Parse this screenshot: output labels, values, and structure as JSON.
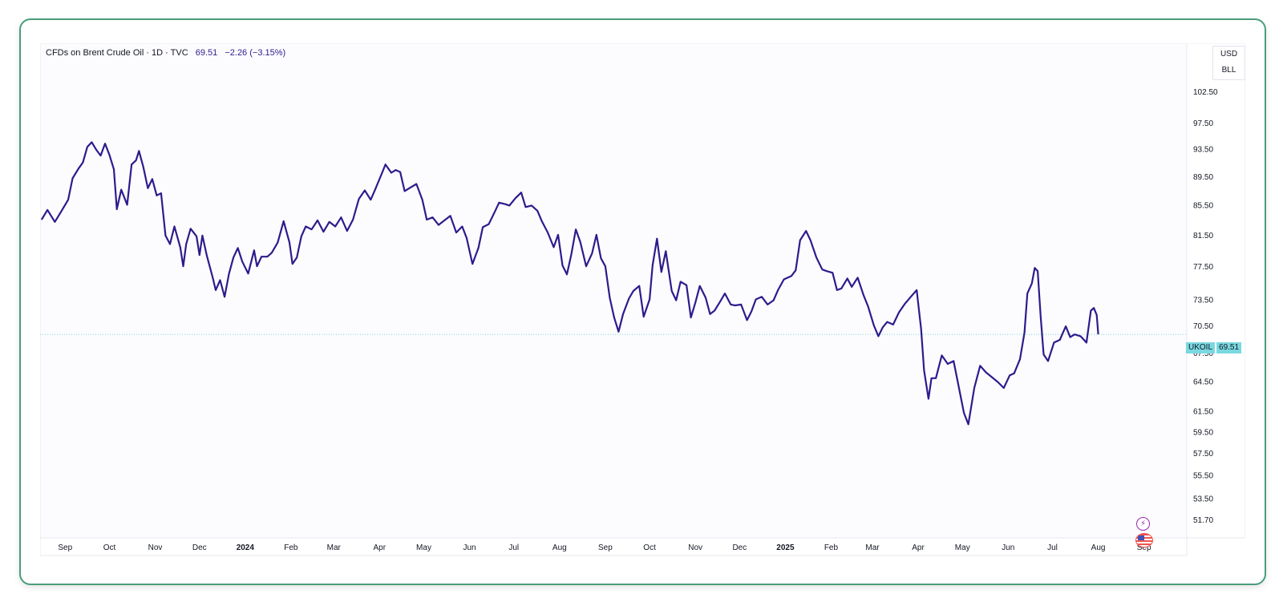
{
  "legend": {
    "symbol": "CFDs on Brent Crude Oil · 1D · TVC",
    "last_value": "69.51",
    "change": "−2.26 (−3.15%)"
  },
  "unit_box": {
    "currency": "USD",
    "unit": "BLL"
  },
  "price_tag": {
    "symbol": "UKOIL",
    "value": "69.51"
  },
  "colors": {
    "line": "#2e1b8c",
    "accent_tag": "#79d8e0",
    "frame": "#4a9d7a"
  },
  "icons": {
    "event_1": "lightning-bolt-icon",
    "event_2": "us-flag-icon"
  },
  "chart_data": {
    "type": "line",
    "title": "",
    "xlabel": "",
    "ylabel": "",
    "scale": "log",
    "ylim": [
      50.2,
      110.7
    ],
    "x_range": [
      "2023-08-15",
      "2025-09-30"
    ],
    "x_ticks": [
      {
        "date": "2023-09-01",
        "label": "Sep"
      },
      {
        "date": "2023-10-01",
        "label": "Oct"
      },
      {
        "date": "2023-11-01",
        "label": "Nov"
      },
      {
        "date": "2023-12-01",
        "label": "Dec"
      },
      {
        "date": "2024-01-01",
        "label": "2024"
      },
      {
        "date": "2024-02-01",
        "label": "Feb"
      },
      {
        "date": "2024-03-01",
        "label": "Mar"
      },
      {
        "date": "2024-04-01",
        "label": "Apr"
      },
      {
        "date": "2024-05-01",
        "label": "May"
      },
      {
        "date": "2024-06-01",
        "label": "Jun"
      },
      {
        "date": "2024-07-01",
        "label": "Jul"
      },
      {
        "date": "2024-08-01",
        "label": "Aug"
      },
      {
        "date": "2024-09-01",
        "label": "Sep"
      },
      {
        "date": "2024-10-01",
        "label": "Oct"
      },
      {
        "date": "2024-11-01",
        "label": "Nov"
      },
      {
        "date": "2024-12-01",
        "label": "Dec"
      },
      {
        "date": "2025-01-01",
        "label": "2025"
      },
      {
        "date": "2025-02-01",
        "label": "Feb"
      },
      {
        "date": "2025-03-01",
        "label": "Mar"
      },
      {
        "date": "2025-04-01",
        "label": "Apr"
      },
      {
        "date": "2025-05-01",
        "label": "May"
      },
      {
        "date": "2025-06-01",
        "label": "Jun"
      },
      {
        "date": "2025-07-01",
        "label": "Jul"
      },
      {
        "date": "2025-08-01",
        "label": "Aug"
      },
      {
        "date": "2025-09-01",
        "label": "Sep"
      }
    ],
    "y_ticks": [
      "102.50",
      "97.50",
      "93.50",
      "89.50",
      "85.50",
      "81.50",
      "77.50",
      "73.50",
      "70.50",
      "67.50",
      "64.50",
      "61.50",
      "59.50",
      "57.50",
      "55.50",
      "53.50",
      "51.70"
    ],
    "last_price": 69.51,
    "series": [
      {
        "values": [
          [
            "2023-08-16",
            83.5
          ],
          [
            "2023-08-20",
            84.8
          ],
          [
            "2023-08-25",
            83.2
          ],
          [
            "2023-08-29",
            84.5
          ],
          [
            "2023-09-03",
            86.2
          ],
          [
            "2023-09-06",
            89.2
          ],
          [
            "2023-09-10",
            90.6
          ],
          [
            "2023-09-13",
            91.5
          ],
          [
            "2023-09-16",
            93.8
          ],
          [
            "2023-09-19",
            94.5
          ],
          [
            "2023-09-22",
            93.4
          ],
          [
            "2023-09-25",
            92.5
          ],
          [
            "2023-09-28",
            94.3
          ],
          [
            "2023-10-01",
            92.6
          ],
          [
            "2023-10-04",
            90.5
          ],
          [
            "2023-10-06",
            84.9
          ],
          [
            "2023-10-09",
            87.6
          ],
          [
            "2023-10-13",
            85.5
          ],
          [
            "2023-10-16",
            91.2
          ],
          [
            "2023-10-19",
            91.8
          ],
          [
            "2023-10-21",
            93.2
          ],
          [
            "2023-10-24",
            90.8
          ],
          [
            "2023-10-27",
            87.8
          ],
          [
            "2023-10-30",
            89.1
          ],
          [
            "2023-11-02",
            86.8
          ],
          [
            "2023-11-05",
            87.1
          ],
          [
            "2023-11-08",
            81.4
          ],
          [
            "2023-11-11",
            80.3
          ],
          [
            "2023-11-14",
            82.6
          ],
          [
            "2023-11-18",
            79.9
          ],
          [
            "2023-11-20",
            77.5
          ],
          [
            "2023-11-22",
            80.3
          ],
          [
            "2023-11-25",
            82.3
          ],
          [
            "2023-11-29",
            81.3
          ],
          [
            "2023-12-01",
            78.9
          ],
          [
            "2023-12-03",
            81.4
          ],
          [
            "2023-12-06",
            78.8
          ],
          [
            "2023-12-10",
            76.1
          ],
          [
            "2023-12-12",
            74.6
          ],
          [
            "2023-12-15",
            75.8
          ],
          [
            "2023-12-18",
            73.8
          ],
          [
            "2023-12-21",
            76.6
          ],
          [
            "2023-12-24",
            78.6
          ],
          [
            "2023-12-27",
            79.8
          ],
          [
            "2023-12-30",
            78.1
          ],
          [
            "2024-01-03",
            76.6
          ],
          [
            "2024-01-07",
            79.5
          ],
          [
            "2024-01-09",
            77.5
          ],
          [
            "2024-01-12",
            78.7
          ],
          [
            "2024-01-16",
            78.7
          ],
          [
            "2024-01-19",
            79.2
          ],
          [
            "2024-01-23",
            80.5
          ],
          [
            "2024-01-27",
            83.3
          ],
          [
            "2024-01-31",
            80.5
          ],
          [
            "2024-02-02",
            77.8
          ],
          [
            "2024-02-05",
            78.6
          ],
          [
            "2024-02-08",
            81.3
          ],
          [
            "2024-02-11",
            82.6
          ],
          [
            "2024-02-15",
            82.2
          ],
          [
            "2024-02-19",
            83.4
          ],
          [
            "2024-02-23",
            81.9
          ],
          [
            "2024-02-27",
            83.2
          ],
          [
            "2024-03-02",
            82.6
          ],
          [
            "2024-03-06",
            83.8
          ],
          [
            "2024-03-10",
            82.0
          ],
          [
            "2024-03-14",
            83.5
          ],
          [
            "2024-03-18",
            86.3
          ],
          [
            "2024-03-22",
            87.5
          ],
          [
            "2024-03-26",
            86.2
          ],
          [
            "2024-03-29",
            87.6
          ],
          [
            "2024-04-02",
            89.6
          ],
          [
            "2024-04-05",
            91.2
          ],
          [
            "2024-04-09",
            90.0
          ],
          [
            "2024-04-12",
            90.4
          ],
          [
            "2024-04-15",
            90.1
          ],
          [
            "2024-04-18",
            87.4
          ],
          [
            "2024-04-22",
            87.9
          ],
          [
            "2024-04-26",
            88.4
          ],
          [
            "2024-04-30",
            86.2
          ],
          [
            "2024-05-03",
            83.5
          ],
          [
            "2024-05-07",
            83.8
          ],
          [
            "2024-05-11",
            82.8
          ],
          [
            "2024-05-15",
            83.4
          ],
          [
            "2024-05-19",
            84.0
          ],
          [
            "2024-05-23",
            81.8
          ],
          [
            "2024-05-27",
            82.6
          ],
          [
            "2024-05-30",
            81.1
          ],
          [
            "2024-06-03",
            77.8
          ],
          [
            "2024-06-07",
            79.8
          ],
          [
            "2024-06-10",
            82.5
          ],
          [
            "2024-06-14",
            82.9
          ],
          [
            "2024-06-18",
            84.5
          ],
          [
            "2024-06-21",
            85.8
          ],
          [
            "2024-06-25",
            85.6
          ],
          [
            "2024-06-28",
            85.4
          ],
          [
            "2024-07-02",
            86.4
          ],
          [
            "2024-07-06",
            87.2
          ],
          [
            "2024-07-09",
            85.2
          ],
          [
            "2024-07-13",
            85.4
          ],
          [
            "2024-07-17",
            84.7
          ],
          [
            "2024-07-20",
            83.3
          ],
          [
            "2024-07-24",
            81.8
          ],
          [
            "2024-07-28",
            79.9
          ],
          [
            "2024-07-31",
            81.5
          ],
          [
            "2024-08-03",
            77.6
          ],
          [
            "2024-08-06",
            76.5
          ],
          [
            "2024-08-09",
            79.0
          ],
          [
            "2024-08-12",
            82.2
          ],
          [
            "2024-08-15",
            80.6
          ],
          [
            "2024-08-19",
            77.5
          ],
          [
            "2024-08-23",
            79.1
          ],
          [
            "2024-08-26",
            81.5
          ],
          [
            "2024-08-29",
            78.5
          ],
          [
            "2024-09-01",
            77.5
          ],
          [
            "2024-09-04",
            73.7
          ],
          [
            "2024-09-07",
            71.4
          ],
          [
            "2024-09-10",
            69.8
          ],
          [
            "2024-09-13",
            71.8
          ],
          [
            "2024-09-17",
            73.6
          ],
          [
            "2024-09-20",
            74.5
          ],
          [
            "2024-09-24",
            75.1
          ],
          [
            "2024-09-27",
            71.5
          ],
          [
            "2024-10-01",
            73.5
          ],
          [
            "2024-10-03",
            77.6
          ],
          [
            "2024-10-06",
            81.0
          ],
          [
            "2024-10-09",
            76.8
          ],
          [
            "2024-10-12",
            79.4
          ],
          [
            "2024-10-16",
            74.5
          ],
          [
            "2024-10-19",
            73.4
          ],
          [
            "2024-10-22",
            75.6
          ],
          [
            "2024-10-26",
            75.2
          ],
          [
            "2024-10-29",
            71.4
          ],
          [
            "2024-11-01",
            73.1
          ],
          [
            "2024-11-04",
            75.1
          ],
          [
            "2024-11-08",
            73.7
          ],
          [
            "2024-11-11",
            71.8
          ],
          [
            "2024-11-14",
            72.2
          ],
          [
            "2024-11-18",
            73.3
          ],
          [
            "2024-11-21",
            74.2
          ],
          [
            "2024-11-25",
            72.9
          ],
          [
            "2024-11-28",
            72.8
          ],
          [
            "2024-12-02",
            72.9
          ],
          [
            "2024-12-06",
            71.1
          ],
          [
            "2024-12-09",
            72.1
          ],
          [
            "2024-12-12",
            73.5
          ],
          [
            "2024-12-16",
            73.8
          ],
          [
            "2024-12-20",
            72.9
          ],
          [
            "2024-12-24",
            73.4
          ],
          [
            "2024-12-27",
            74.6
          ],
          [
            "2024-12-31",
            75.9
          ],
          [
            "2025-01-05",
            76.3
          ],
          [
            "2025-01-08",
            77.0
          ],
          [
            "2025-01-11",
            80.8
          ],
          [
            "2025-01-15",
            82.0
          ],
          [
            "2025-01-18",
            80.8
          ],
          [
            "2025-01-22",
            78.6
          ],
          [
            "2025-01-26",
            77.1
          ],
          [
            "2025-01-29",
            76.9
          ],
          [
            "2025-02-02",
            76.7
          ],
          [
            "2025-02-05",
            74.6
          ],
          [
            "2025-02-08",
            74.8
          ],
          [
            "2025-02-12",
            76.0
          ],
          [
            "2025-02-15",
            75.0
          ],
          [
            "2025-02-19",
            76.1
          ],
          [
            "2025-02-23",
            74.0
          ],
          [
            "2025-02-26",
            72.7
          ],
          [
            "2025-03-02",
            70.5
          ],
          [
            "2025-03-05",
            69.3
          ],
          [
            "2025-03-08",
            70.3
          ],
          [
            "2025-03-11",
            70.9
          ],
          [
            "2025-03-15",
            70.6
          ],
          [
            "2025-03-19",
            72.0
          ],
          [
            "2025-03-23",
            73.0
          ],
          [
            "2025-03-27",
            73.8
          ],
          [
            "2025-03-31",
            74.6
          ],
          [
            "2025-04-03",
            70.1
          ],
          [
            "2025-04-05",
            65.6
          ],
          [
            "2025-04-08",
            62.7
          ],
          [
            "2025-04-10",
            64.8
          ],
          [
            "2025-04-13",
            64.8
          ],
          [
            "2025-04-17",
            67.2
          ],
          [
            "2025-04-21",
            66.3
          ],
          [
            "2025-04-25",
            66.6
          ],
          [
            "2025-04-28",
            64.3
          ],
          [
            "2025-05-02",
            61.3
          ],
          [
            "2025-05-05",
            60.2
          ],
          [
            "2025-05-09",
            63.8
          ],
          [
            "2025-05-13",
            66.1
          ],
          [
            "2025-05-17",
            65.4
          ],
          [
            "2025-05-21",
            64.9
          ],
          [
            "2025-05-25",
            64.4
          ],
          [
            "2025-05-29",
            63.8
          ],
          [
            "2025-06-02",
            65.1
          ],
          [
            "2025-06-05",
            65.3
          ],
          [
            "2025-06-09",
            66.8
          ],
          [
            "2025-06-12",
            69.7
          ],
          [
            "2025-06-14",
            74.2
          ],
          [
            "2025-06-17",
            75.4
          ],
          [
            "2025-06-19",
            77.3
          ],
          [
            "2025-06-21",
            76.9
          ],
          [
            "2025-06-23",
            71.5
          ],
          [
            "2025-06-25",
            67.3
          ],
          [
            "2025-06-28",
            66.6
          ],
          [
            "2025-07-02",
            68.6
          ],
          [
            "2025-07-06",
            68.9
          ],
          [
            "2025-07-10",
            70.4
          ],
          [
            "2025-07-13",
            69.2
          ],
          [
            "2025-07-16",
            69.5
          ],
          [
            "2025-07-20",
            69.3
          ],
          [
            "2025-07-24",
            68.6
          ],
          [
            "2025-07-27",
            72.2
          ],
          [
            "2025-07-29",
            72.5
          ],
          [
            "2025-07-31",
            71.7
          ],
          [
            "2025-08-01",
            69.51
          ]
        ]
      }
    ]
  }
}
